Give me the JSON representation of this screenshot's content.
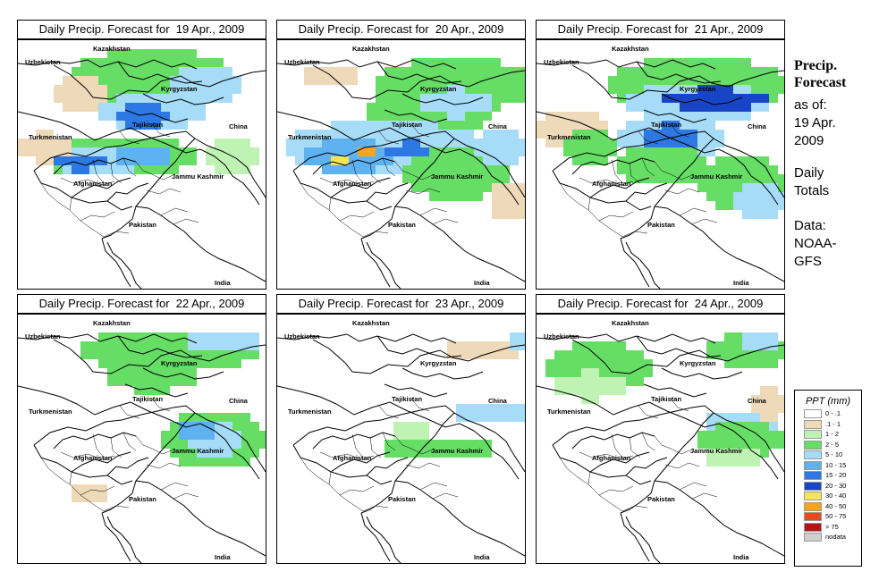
{
  "panels": [
    {
      "title_prefix": "Daily Precip. Forecast for",
      "date": "19 Apr., 2009"
    },
    {
      "title_prefix": "Daily Precip. Forecast for",
      "date": "20 Apr., 2009"
    },
    {
      "title_prefix": "Daily Precip. Forecast for",
      "date": "21 Apr., 2009"
    },
    {
      "title_prefix": "Daily Precip. Forecast for",
      "date": "22 Apr., 2009"
    },
    {
      "title_prefix": "Daily Precip. Forecast for",
      "date": "23 Apr., 2009"
    },
    {
      "title_prefix": "Daily Precip. Forecast for",
      "date": "24 Apr., 2009"
    }
  ],
  "map_labels": {
    "kazakhstan": "Kazakhstan",
    "uzbekistan": "Uzbekistan",
    "kyrgyzstan": "Kyrgyzstan",
    "tajikistan": "Tajikistan",
    "china": "China",
    "turkmenistan": "Turkmenistan",
    "afghanistan": "Afghanistan",
    "jammu_kashmir": "Jammu Kashmir",
    "pakistan": "Pakistan",
    "india": "India"
  },
  "sidebar": {
    "title_line1": "Precip.",
    "title_line2": "Forecast",
    "asof_line1": "as of:",
    "asof_line2": "19 Apr.",
    "asof_line3": "2009",
    "totals_line1": "Daily",
    "totals_line2": "Totals",
    "data_line1": "Data:",
    "data_line2": "NOAA-",
    "data_line3": "GFS"
  },
  "legend": {
    "title": "PPT (mm)",
    "items": [
      {
        "label": "0 - .1",
        "color": "#ffffff"
      },
      {
        "label": ".1 - 1",
        "color": "#eed9b9"
      },
      {
        "label": "1 - 2",
        "color": "#bff3b3"
      },
      {
        "label": "2 - 5",
        "color": "#66de66"
      },
      {
        "label": "5 - 10",
        "color": "#a6dcf7"
      },
      {
        "label": "10 - 15",
        "color": "#5fb2f0"
      },
      {
        "label": "15 - 20",
        "color": "#2d78e3"
      },
      {
        "label": "20 - 30",
        "color": "#1845c6"
      },
      {
        "label": "30 - 40",
        "color": "#f5e45a"
      },
      {
        "label": "40 - 50",
        "color": "#f7a51e"
      },
      {
        "label": "50 - 75",
        "color": "#e8481a"
      },
      {
        "label": "> 75",
        "color": "#b3141a"
      },
      {
        "label": "nodata",
        "color": "#cfcfcf"
      }
    ]
  }
}
